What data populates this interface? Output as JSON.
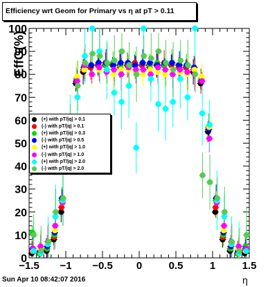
{
  "chart_data": {
    "type": "scatter",
    "title": "Efficiency wrt Geom for Primary vs  η at pT > 0.11",
    "xlabel": "η",
    "ylabel": "EffG(%)",
    "xlim": [
      -1.5,
      1.5
    ],
    "ylim": [
      0,
      100
    ],
    "x_ticks": [
      "−1.5",
      "−1",
      "−0.5",
      "0",
      "0.5",
      "1",
      "1.5"
    ],
    "y_ticks": [
      "0",
      "10",
      "20",
      "30",
      "40",
      "50",
      "60",
      "70",
      "80",
      "90",
      "100"
    ],
    "grid": false,
    "legend_placement": "middle-left",
    "series": [
      {
        "name": "(+) with pT/|q| > 0.1",
        "color": "#000000",
        "err": 1.5,
        "x": [
          -1.45,
          -1.35,
          -1.25,
          -1.15,
          -1.05,
          -0.95,
          -0.85,
          -0.75,
          -0.65,
          -0.55,
          -0.45,
          -0.35,
          -0.25,
          -0.15,
          -0.05,
          0.05,
          0.15,
          0.25,
          0.35,
          0.45,
          0.55,
          0.65,
          0.75,
          0.85,
          0.95,
          1.05,
          1.15,
          1.25,
          1.35,
          1.45
        ],
        "y": [
          2,
          2,
          3,
          8,
          20,
          55,
          76,
          81,
          83,
          84,
          84,
          84,
          84,
          84,
          84,
          84,
          84,
          84,
          84,
          84,
          84,
          83,
          81,
          76,
          55,
          20,
          8,
          3,
          2,
          2
        ]
      },
      {
        "name": "(-) with pT/|q| > 0.1",
        "color": "#ff0000",
        "err": 1.5,
        "x": [
          -1.45,
          -1.35,
          -1.25,
          -1.15,
          -1.05,
          -0.95,
          -0.85,
          -0.75,
          -0.65,
          -0.55,
          -0.45,
          -0.35,
          -0.25,
          -0.15,
          -0.05,
          0.05,
          0.15,
          0.25,
          0.35,
          0.45,
          0.55,
          0.65,
          0.75,
          0.85,
          0.95,
          1.05,
          1.15,
          1.25,
          1.35,
          1.45
        ],
        "y": [
          3,
          2,
          4,
          9,
          22,
          56,
          77,
          82,
          83,
          84,
          85,
          84,
          83,
          84,
          85,
          84,
          83,
          84,
          85,
          84,
          83,
          83,
          82,
          77,
          56,
          22,
          9,
          4,
          2,
          3
        ]
      },
      {
        "name": "(+) with pT/|q| > 0.3",
        "color": "#00dd00",
        "err": 2,
        "x": [
          -1.45,
          -1.35,
          -1.25,
          -1.15,
          -1.05,
          -0.95,
          -0.85,
          -0.75,
          -0.65,
          -0.55,
          -0.45,
          -0.35,
          -0.25,
          -0.15,
          -0.05,
          0.05,
          0.15,
          0.25,
          0.35,
          0.45,
          0.55,
          0.65,
          0.75,
          0.85,
          0.95,
          1.05,
          1.15,
          1.25,
          1.35,
          1.45
        ],
        "y": [
          11,
          2,
          4,
          10,
          25,
          57,
          78,
          83,
          84,
          85,
          84,
          85,
          84,
          85,
          84,
          85,
          84,
          85,
          84,
          85,
          84,
          84,
          83,
          78,
          57,
          25,
          10,
          4,
          2,
          5
        ]
      },
      {
        "name": "(-) with pT/|q| > 0.5",
        "color": "#0000ff",
        "err": 2,
        "x": [
          -1.45,
          -1.35,
          -1.25,
          -1.15,
          -1.05,
          -0.95,
          -0.85,
          -0.75,
          -0.65,
          -0.55,
          -0.45,
          -0.35,
          -0.25,
          -0.15,
          -0.05,
          0.05,
          0.15,
          0.25,
          0.35,
          0.45,
          0.55,
          0.65,
          0.75,
          0.85,
          0.95,
          1.05,
          1.15,
          1.25,
          1.35,
          1.45
        ],
        "y": [
          4,
          3,
          5,
          11,
          26,
          56,
          77,
          83,
          84,
          85,
          85,
          84,
          85,
          85,
          84,
          85,
          85,
          84,
          85,
          85,
          84,
          84,
          83,
          77,
          56,
          26,
          11,
          5,
          3,
          4
        ]
      },
      {
        "name": "(+) with pT/|q| > 1.0",
        "color": "#ffff00",
        "err": 3,
        "x": [
          -1.45,
          -1.35,
          -1.25,
          -1.15,
          -1.05,
          -0.95,
          -0.85,
          -0.75,
          -0.65,
          -0.55,
          -0.45,
          -0.35,
          -0.25,
          -0.15,
          -0.05,
          0.05,
          0.15,
          0.25,
          0.35,
          0.45,
          0.55,
          0.65,
          0.75,
          0.85,
          0.95,
          1.05,
          1.15,
          1.25,
          1.35,
          1.45
        ],
        "y": [
          3,
          4,
          6,
          12,
          24,
          57,
          79,
          82,
          80,
          82,
          81,
          80,
          82,
          82,
          81,
          80,
          82,
          81,
          80,
          82,
          81,
          80,
          82,
          79,
          57,
          24,
          12,
          6,
          4,
          3
        ]
      },
      {
        "name": "(-) with pT/|q| > 1.0",
        "color": "#ff00ff",
        "err": 3,
        "x": [
          -1.45,
          -1.35,
          -1.25,
          -1.15,
          -1.05,
          -0.95,
          -0.85,
          -0.75,
          -0.65,
          -0.55,
          -0.45,
          -0.35,
          -0.25,
          -0.15,
          -0.05,
          0.05,
          0.15,
          0.25,
          0.35,
          0.45,
          0.55,
          0.65,
          0.75,
          0.85,
          0.95,
          1.05,
          1.15,
          1.25,
          1.35,
          1.45
        ],
        "y": [
          4,
          5,
          7,
          14,
          24,
          52,
          77,
          84,
          80,
          83,
          81,
          82,
          80,
          83,
          82,
          82,
          80,
          83,
          82,
          80,
          82,
          81,
          80,
          77,
          52,
          24,
          14,
          7,
          5,
          4
        ]
      },
      {
        "name": "(+) with pT/|q| > 2.0",
        "color": "#00ffff",
        "err": 10,
        "x": [
          -1.45,
          -1.35,
          -1.25,
          -1.15,
          -1.05,
          -0.95,
          -0.85,
          -0.75,
          -0.65,
          -0.55,
          -0.45,
          -0.35,
          -0.25,
          -0.15,
          -0.05,
          0.05,
          0.15,
          0.25,
          0.35,
          0.45,
          0.55,
          0.65,
          0.75,
          0.85,
          0.95,
          1.05,
          1.15,
          1.25,
          1.35,
          1.45
        ],
        "y": [
          3,
          2,
          6,
          18,
          25,
          58,
          70,
          88,
          100,
          90,
          82,
          72,
          68,
          75,
          48,
          100,
          78,
          67,
          65,
          68,
          78,
          70,
          100,
          63,
          58,
          25,
          18,
          6,
          2,
          3
        ]
      },
      {
        "name": "(-) with pT/|q| > 2.0",
        "color": "#55cc55",
        "err": 8,
        "x": [
          -1.45,
          -1.35,
          -1.25,
          -1.15,
          -1.05,
          -0.95,
          -0.85,
          -0.75,
          -0.65,
          -0.55,
          -0.45,
          -0.35,
          -0.25,
          -0.15,
          -0.05,
          0.05,
          0.15,
          0.25,
          0.35,
          0.45,
          0.55,
          0.65,
          0.75,
          0.85,
          0.95,
          1.05,
          1.15,
          1.25,
          1.35,
          1.45
        ],
        "y": [
          10,
          3,
          7,
          20,
          26,
          58,
          75,
          85,
          89,
          88,
          85,
          86,
          90,
          84,
          80,
          88,
          87,
          90,
          85,
          82,
          86,
          84,
          80,
          36,
          33,
          26,
          20,
          7,
          3,
          10
        ]
      }
    ]
  },
  "footer": {
    "date": "Sun Apr 10 08:42:07 2016"
  }
}
